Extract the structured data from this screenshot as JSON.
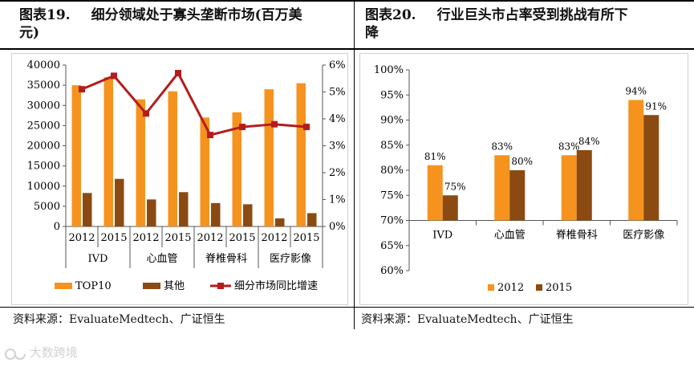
{
  "left": {
    "fig_num": "图表19.",
    "title_line1": "细分领域处于寡头垄断市场(百万美",
    "title_line2": "元)",
    "source": "资料来源：EvaluateMedtech、广证恒生"
  },
  "right": {
    "fig_num": "图表20.",
    "title_line1": "行业巨头市占率受到挑战有所下",
    "title_line2": "降",
    "source": "资料来源：EvaluateMedtech、广证恒生"
  },
  "watermark": "大数跨境",
  "colors": {
    "top10": "#f5931e",
    "others": "#8b4a12",
    "growth": "#b51c1c",
    "share2012": "#f5931e",
    "share2015": "#8b4a12"
  },
  "chart_data": [
    {
      "type": "bar",
      "groups": [
        "IVD",
        "心血管",
        "脊椎骨科",
        "医疗影像"
      ],
      "years": [
        "2012",
        "2015"
      ],
      "series": [
        {
          "name": "TOP10",
          "kind": "bar",
          "axis": "left",
          "values": [
            35000,
            37000,
            31500,
            33500,
            27000,
            28300,
            34000,
            35500
          ]
        },
        {
          "name": "其他",
          "kind": "bar",
          "axis": "left",
          "values": [
            8300,
            11800,
            6700,
            8500,
            5800,
            5500,
            2000,
            3300
          ]
        },
        {
          "name": "细分市场同比增速",
          "kind": "line",
          "axis": "right",
          "values": [
            5.1,
            5.6,
            4.2,
            5.7,
            3.4,
            3.7,
            3.8,
            3.7
          ]
        }
      ],
      "yleft": {
        "min": 0,
        "max": 40000,
        "ticks": [
          "0",
          "5000",
          "10000",
          "15000",
          "20000",
          "25000",
          "30000",
          "35000",
          "40000"
        ]
      },
      "yright": {
        "min": 0,
        "max": 6,
        "ticks": [
          "0%",
          "1%",
          "2%",
          "3%",
          "4%",
          "5%",
          "6%"
        ]
      },
      "legend_position": "bottom"
    },
    {
      "type": "bar",
      "categories": [
        "IVD",
        "心血管",
        "脊椎骨科",
        "医疗影像"
      ],
      "series": [
        {
          "name": "2012",
          "values": [
            81,
            83,
            83,
            94
          ],
          "labels": [
            "81%",
            "83%",
            "83%",
            "94%"
          ]
        },
        {
          "name": "2015",
          "values": [
            75,
            80,
            84,
            91
          ],
          "labels": [
            "75%",
            "80%",
            "84%",
            "91%"
          ]
        }
      ],
      "ylim": [
        60,
        100
      ],
      "baseline": 70,
      "yticks": [
        "60%",
        "65%",
        "70%",
        "75%",
        "80%",
        "85%",
        "90%",
        "95%",
        "100%"
      ],
      "legend_position": "bottom"
    }
  ]
}
